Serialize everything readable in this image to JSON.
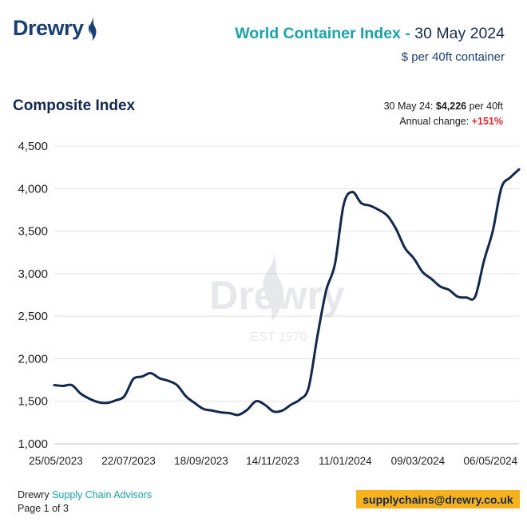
{
  "logo": {
    "text": "Drewry"
  },
  "header": {
    "title": "World Container Index",
    "dash": "-",
    "date": "30 May 2024",
    "subtitle": "$ per 40ft container"
  },
  "chart_title": "Composite Index",
  "summary": {
    "line1_prefix": "30 May 24:",
    "line1_value": "$4,226",
    "line1_suffix": "per 40ft",
    "line2_prefix": "Annual change:",
    "line2_value": "+151%"
  },
  "watermark": {
    "text": "Drewry",
    "est": "EST 1970"
  },
  "chart_data": {
    "type": "line",
    "title": "Composite Index",
    "xlabel": "",
    "ylabel": "",
    "ylim": [
      1000,
      4500
    ],
    "yticks": [
      1000,
      1500,
      2000,
      2500,
      3000,
      3500,
      4000,
      4500
    ],
    "ytick_labels": [
      "1,000",
      "1,500",
      "2,000",
      "2,500",
      "3,000",
      "3,500",
      "4,000",
      "4,500"
    ],
    "xtick_labels": [
      "25/05/2023",
      "22/07/2023",
      "18/09/2023",
      "14/11/2023",
      "11/01/2024",
      "09/03/2024",
      "06/05/2024"
    ],
    "grid": true,
    "series": [
      {
        "color": "#13284c",
        "x": [
          "2023-05-25",
          "2023-06-01",
          "2023-06-08",
          "2023-06-15",
          "2023-06-22",
          "2023-06-29",
          "2023-07-06",
          "2023-07-13",
          "2023-07-20",
          "2023-07-27",
          "2023-08-03",
          "2023-08-10",
          "2023-08-17",
          "2023-08-24",
          "2023-08-31",
          "2023-09-07",
          "2023-09-14",
          "2023-09-21",
          "2023-09-28",
          "2023-10-05",
          "2023-10-12",
          "2023-10-19",
          "2023-10-26",
          "2023-11-02",
          "2023-11-09",
          "2023-11-16",
          "2023-11-23",
          "2023-11-30",
          "2023-12-07",
          "2023-12-14",
          "2023-12-21",
          "2023-12-28",
          "2024-01-04",
          "2024-01-11",
          "2024-01-18",
          "2024-01-25",
          "2024-02-01",
          "2024-02-08",
          "2024-02-15",
          "2024-02-22",
          "2024-02-29",
          "2024-03-07",
          "2024-03-14",
          "2024-03-21",
          "2024-03-28",
          "2024-04-04",
          "2024-04-11",
          "2024-04-18",
          "2024-04-25",
          "2024-05-02",
          "2024-05-09",
          "2024-05-16",
          "2024-05-23",
          "2024-05-30"
        ],
        "y": [
          1690,
          1680,
          1690,
          1590,
          1530,
          1490,
          1480,
          1510,
          1560,
          1760,
          1790,
          1830,
          1770,
          1740,
          1690,
          1560,
          1480,
          1410,
          1390,
          1370,
          1360,
          1340,
          1400,
          1500,
          1460,
          1380,
          1390,
          1460,
          1520,
          1660,
          2260,
          2800,
          3110,
          3810,
          3960,
          3830,
          3800,
          3750,
          3680,
          3520,
          3300,
          3180,
          3020,
          2940,
          2850,
          2810,
          2730,
          2720,
          2730,
          3150,
          3500,
          4010,
          4130,
          4226
        ]
      }
    ]
  }
}
